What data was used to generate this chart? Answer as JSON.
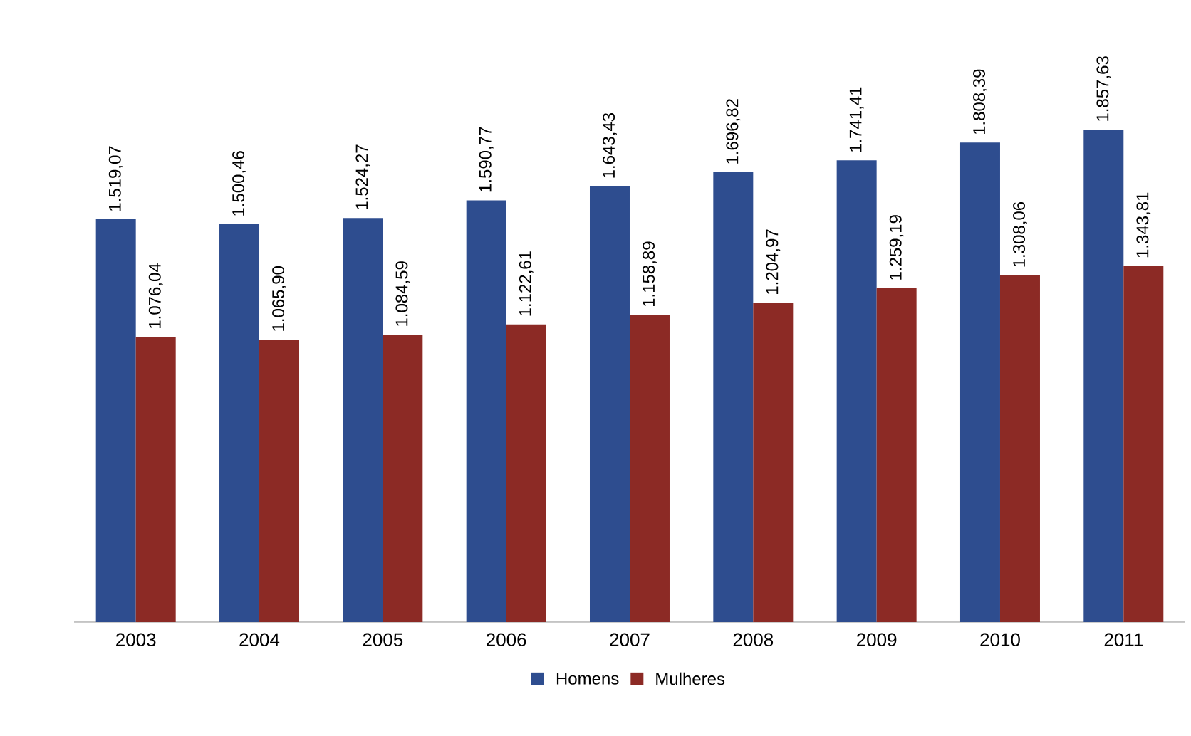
{
  "chart_data": {
    "type": "bar",
    "categories": [
      "2003",
      "2004",
      "2005",
      "2006",
      "2007",
      "2008",
      "2009",
      "2010",
      "2011"
    ],
    "ylim": [
      0,
      1857.63
    ],
    "tick_labels": "x",
    "legend": "bottom",
    "grid": false,
    "series": [
      {
        "name": "Homens",
        "color": "#2e4d8f",
        "values": [
          1519.07,
          1500.46,
          1524.27,
          1590.77,
          1643.43,
          1696.82,
          1741.41,
          1808.39,
          1857.63
        ],
        "value_labels": [
          "1.519,07",
          "1.500,46",
          "1.524,27",
          "1.590,77",
          "1.643,43",
          "1.696,82",
          "1.741,41",
          "1.808,39",
          "1.857,63"
        ]
      },
      {
        "name": "Mulheres",
        "color": "#8c2a25",
        "values": [
          1076.04,
          1065.9,
          1084.59,
          1122.61,
          1158.89,
          1204.97,
          1259.19,
          1308.06,
          1343.81
        ],
        "value_labels": [
          "1.076,04",
          "1.065,90",
          "1.084,59",
          "1.122,61",
          "1.158,89",
          "1.204,97",
          "1.259,19",
          "1.308,06",
          "1.343,81"
        ]
      }
    ]
  }
}
